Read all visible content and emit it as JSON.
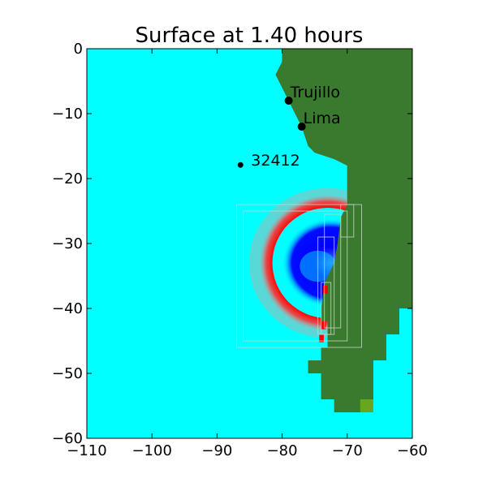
{
  "chart_data": {
    "type": "heatmap",
    "title": "Surface at 1.40 hours",
    "xlabel": "",
    "ylabel": "",
    "xlim": [
      -110,
      -60
    ],
    "ylim": [
      -60,
      0
    ],
    "xticks": [
      -110,
      -100,
      -90,
      -80,
      -70,
      -60
    ],
    "yticks": [
      0,
      -10,
      -20,
      -30,
      -40,
      -50,
      -60
    ],
    "xtick_labels": [
      "−110",
      "−100",
      "−90",
      "−80",
      "−70",
      "−60"
    ],
    "ytick_labels": [
      "0",
      "−10",
      "−20",
      "−30",
      "−40",
      "−50",
      "−60"
    ],
    "grid": false,
    "colors": {
      "ocean": "#00ffff",
      "land": "#3a7a2e",
      "land_high": "#6aa51e",
      "wave_positive": "#ff0000",
      "wave_negative": "#0000ff",
      "marker": "#000000",
      "patch_outline": "#c8d4c8"
    },
    "gauges": [
      {
        "name": "Trujillo",
        "lon": -79,
        "lat": -8
      },
      {
        "name": "Lima",
        "lon": -77,
        "lat": -12
      },
      {
        "name": "32412",
        "lon": -86.4,
        "lat": -17.9
      }
    ],
    "wavefront": {
      "center": [
        -73,
        -33
      ],
      "outer_radius": 10.5,
      "inner_radius": 8.5,
      "depression_radius": 6
    }
  }
}
